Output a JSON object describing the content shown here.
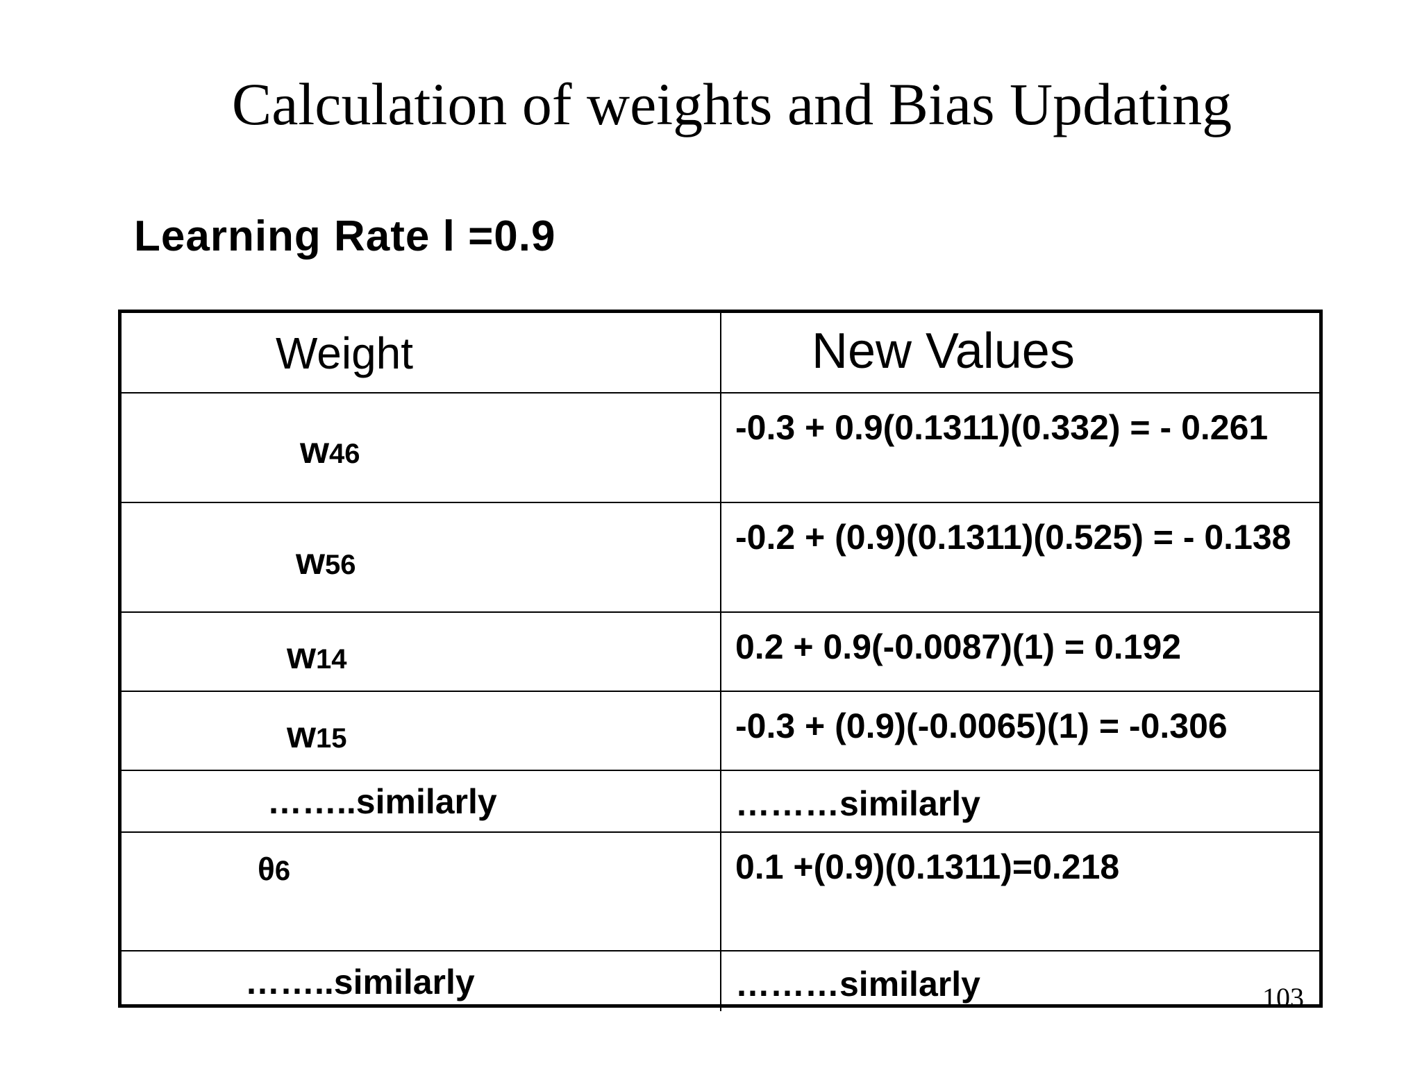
{
  "title": "Calculation of weights and Bias Updating",
  "subtitle": "Learning Rate l =0.9",
  "table": {
    "headers": {
      "weight": "Weight",
      "new_values": "New Values"
    },
    "rows": [
      {
        "weight_base": "w",
        "weight_sub": "46",
        "value": "-0.3 + 0.9(0.1311)(0.332) = - 0.261"
      },
      {
        "weight_base": "w",
        "weight_sub": "56",
        "value": "-0.2 + (0.9)(0.1311)(0.525) = - 0.138"
      },
      {
        "weight_base": "w",
        "weight_sub": "14",
        "value": "0.2 + 0.9(-0.0087)(1) = 0.192"
      },
      {
        "weight_base": "w",
        "weight_sub": "15",
        "value": "-0.3 + (0.9)(-0.0065)(1) = -0.306"
      },
      {
        "weight_text": "……..similarly",
        "value": "………similarly"
      },
      {
        "weight_base": "θ",
        "weight_sub": "6",
        "value": "0.1 +(0.9)(0.1311)=0.218"
      },
      {
        "weight_text": "……..similarly",
        "value": "………similarly"
      }
    ]
  },
  "page_number": "103"
}
